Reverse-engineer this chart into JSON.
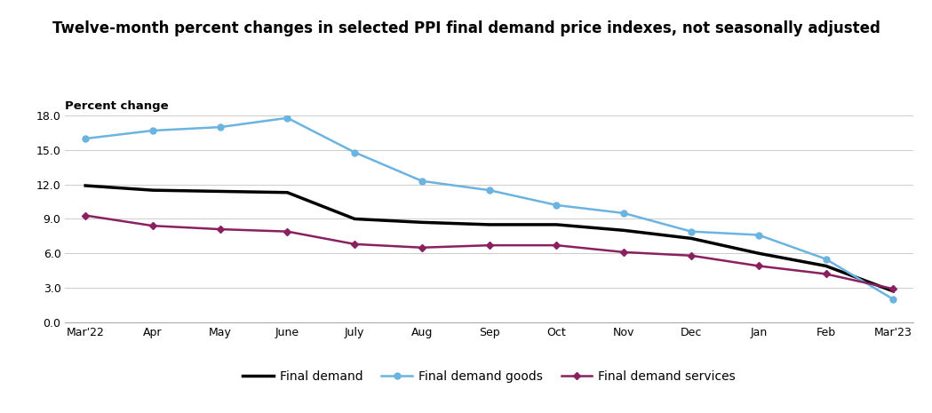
{
  "title": "Twelve-month percent changes in selected PPI final demand price indexes, not seasonally adjusted",
  "ylabel": "Percent change",
  "categories": [
    "Mar'22",
    "Apr",
    "May",
    "June",
    "July",
    "Aug",
    "Sep",
    "Oct",
    "Nov",
    "Dec",
    "Jan",
    "Feb",
    "Mar'23"
  ],
  "final_demand": [
    11.9,
    11.5,
    11.4,
    11.3,
    9.0,
    8.7,
    8.5,
    8.5,
    8.0,
    7.3,
    6.0,
    4.9,
    2.7
  ],
  "final_demand_goods": [
    16.0,
    16.7,
    17.0,
    17.8,
    14.8,
    12.3,
    11.5,
    10.2,
    9.5,
    7.9,
    7.6,
    5.5,
    2.0
  ],
  "final_demand_services": [
    9.3,
    8.4,
    8.1,
    7.9,
    6.8,
    6.5,
    6.7,
    6.7,
    6.1,
    5.8,
    4.9,
    4.2,
    2.9
  ],
  "final_demand_color": "#000000",
  "final_demand_goods_color": "#6BB3E0",
  "final_demand_services_color": "#8B2060",
  "legend_labels": [
    "Final demand",
    "Final demand goods",
    "Final demand services"
  ],
  "ylim": [
    0.0,
    18.0
  ],
  "yticks": [
    0.0,
    3.0,
    6.0,
    9.0,
    12.0,
    15.0,
    18.0
  ],
  "background_color": "#ffffff",
  "plot_bg_color": "#ffffff",
  "title_fontsize": 12,
  "ylabel_fontsize": 9.5,
  "tick_fontsize": 9,
  "legend_fontsize": 10
}
